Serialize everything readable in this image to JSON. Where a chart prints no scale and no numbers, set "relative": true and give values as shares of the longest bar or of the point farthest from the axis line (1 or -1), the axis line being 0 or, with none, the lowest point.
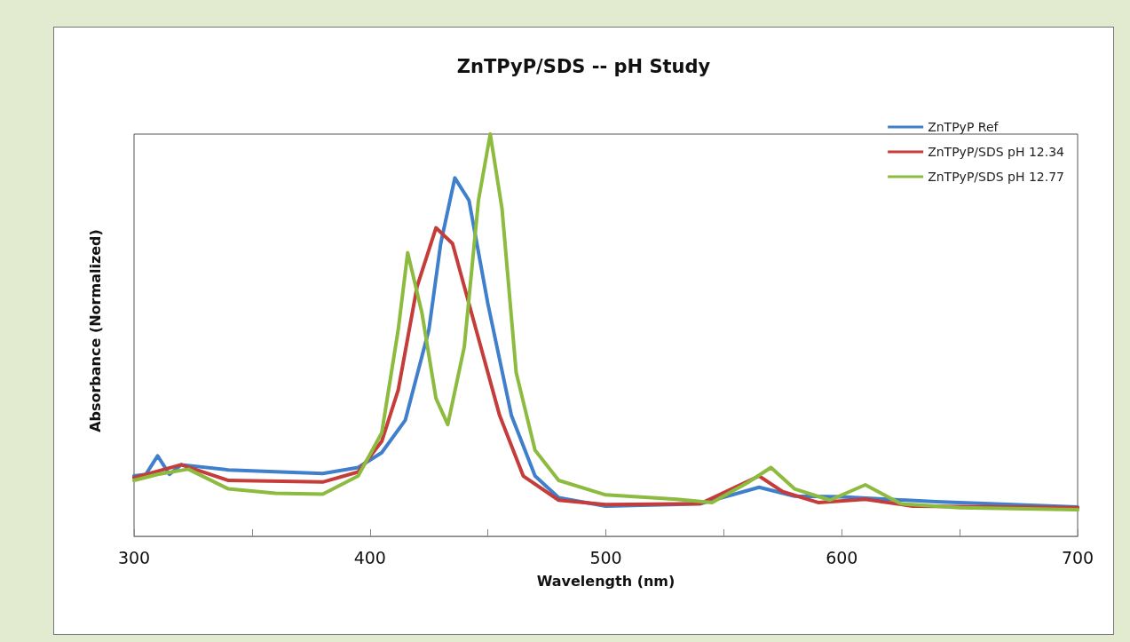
{
  "chart_data": {
    "type": "line",
    "title": "ZnTPyP/SDS -- pH Study",
    "xlabel": "Wavelength (nm)",
    "ylabel": "Absorbance (Normalized)",
    "relative": true,
    "xlim": [
      300,
      700
    ],
    "xticks": [
      300,
      {
        "value": 350,
        "label": null
      },
      400,
      {
        "value": 450,
        "label": null
      },
      500,
      {
        "value": 550,
        "label": null
      },
      600,
      {
        "value": 650,
        "label": null
      },
      700
    ],
    "grid": false,
    "legend": "top right",
    "marker": "none",
    "line_style": "solid",
    "series": [
      {
        "name": "ZnTPyP Ref",
        "color": "#3f7fcc",
        "x": [
          300,
          305,
          310,
          315,
          320,
          340,
          380,
          395,
          405,
          415,
          425,
          430,
          436,
          442,
          450,
          460,
          470,
          480,
          500,
          540,
          565,
          580,
          600,
          640,
          700
        ],
        "values": [
          0.15,
          0.154,
          0.2,
          0.154,
          0.178,
          0.165,
          0.156,
          0.171,
          0.208,
          0.289,
          0.514,
          0.728,
          0.891,
          0.835,
          0.578,
          0.3,
          0.15,
          0.096,
          0.075,
          0.081,
          0.122,
          0.1,
          0.098,
          0.086,
          0.073
        ]
      },
      {
        "name": "ZnTPyP/SDS pH 12.34",
        "color": "#c43d3a",
        "x": [
          300,
          320,
          340,
          380,
          395,
          405,
          412,
          420,
          428,
          435,
          445,
          455,
          465,
          480,
          500,
          540,
          565,
          575,
          590,
          610,
          630,
          700
        ],
        "values": [
          0.146,
          0.178,
          0.139,
          0.135,
          0.16,
          0.236,
          0.364,
          0.621,
          0.767,
          0.728,
          0.514,
          0.3,
          0.15,
          0.09,
          0.079,
          0.081,
          0.15,
          0.111,
          0.084,
          0.092,
          0.075,
          0.071
        ]
      },
      {
        "name": "ZnTPyP/SDS pH 12.77",
        "color": "#8dbb3f",
        "x": [
          300,
          310,
          323,
          340,
          360,
          380,
          395,
          405,
          412,
          416,
          422,
          428,
          433,
          440,
          446,
          451,
          456,
          462,
          470,
          480,
          500,
          530,
          545,
          560,
          570,
          580,
          595,
          610,
          625,
          650,
          700
        ],
        "values": [
          0.139,
          0.154,
          0.167,
          0.118,
          0.107,
          0.105,
          0.15,
          0.257,
          0.514,
          0.705,
          0.557,
          0.343,
          0.278,
          0.471,
          0.835,
          1,
          0.814,
          0.407,
          0.214,
          0.139,
          0.103,
          0.092,
          0.084,
          0.133,
          0.171,
          0.118,
          0.09,
          0.128,
          0.081,
          0.071,
          0.066
        ]
      }
    ]
  }
}
